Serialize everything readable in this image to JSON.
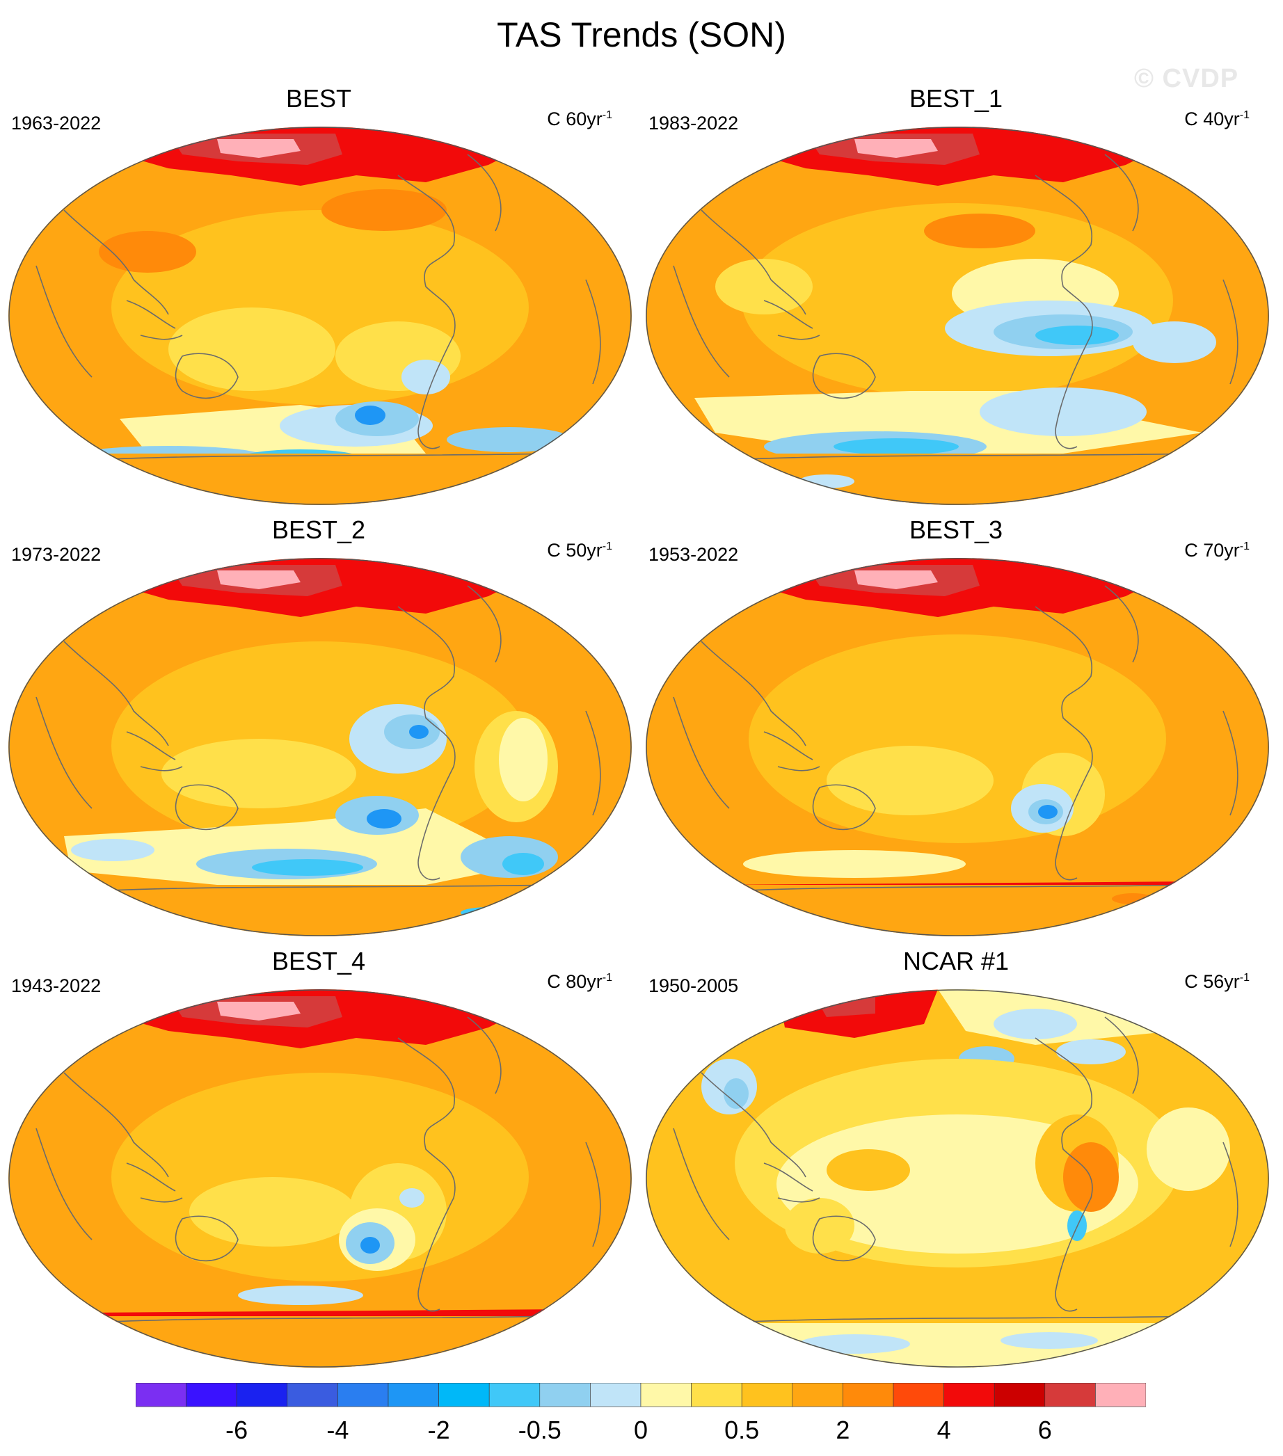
{
  "title": "TAS Trends (SON)",
  "watermark": "© CVDP",
  "panels": [
    {
      "title": "BEST",
      "years": "1963-2022",
      "units": "C 60yr",
      "units_sup": "-1",
      "style": "best"
    },
    {
      "title": "BEST_1",
      "years": "1983-2022",
      "units": "C 40yr",
      "units_sup": "-1",
      "style": "best1"
    },
    {
      "title": "BEST_2",
      "years": "1973-2022",
      "units": "C 50yr",
      "units_sup": "-1",
      "style": "best2"
    },
    {
      "title": "BEST_3",
      "years": "1953-2022",
      "units": "C 70yr",
      "units_sup": "-1",
      "style": "best3"
    },
    {
      "title": "BEST_4",
      "years": "1943-2022",
      "units": "C 80yr",
      "units_sup": "-1",
      "style": "best4"
    },
    {
      "title": "NCAR #1",
      "years": "1950-2005",
      "units": "C 56yr",
      "units_sup": "-1",
      "style": "ncar"
    }
  ],
  "colorbar": {
    "colors": [
      "#7b2ff2",
      "#3a12ff",
      "#1a22f0",
      "#3a5ce0",
      "#2a7ef0",
      "#1e96f5",
      "#00b8f8",
      "#40c8f8",
      "#90d0f0",
      "#c0e4f8",
      "#fff8a8",
      "#ffe04a",
      "#ffc21e",
      "#ffa612",
      "#ff8a0a",
      "#ff4a0a",
      "#f20a0a",
      "#cc0000",
      "#d63a3a",
      "#ffb0b8"
    ],
    "labels": [
      {
        "text": "-6",
        "boundary": 2
      },
      {
        "text": "-4",
        "boundary": 4
      },
      {
        "text": "-2",
        "boundary": 6
      },
      {
        "text": "-0.5",
        "boundary": 8
      },
      {
        "text": "0",
        "boundary": 10
      },
      {
        "text": "0.5",
        "boundary": 12
      },
      {
        "text": "2",
        "boundary": 14
      },
      {
        "text": "4",
        "boundary": 16
      },
      {
        "text": "6",
        "boundary": 18
      }
    ]
  }
}
